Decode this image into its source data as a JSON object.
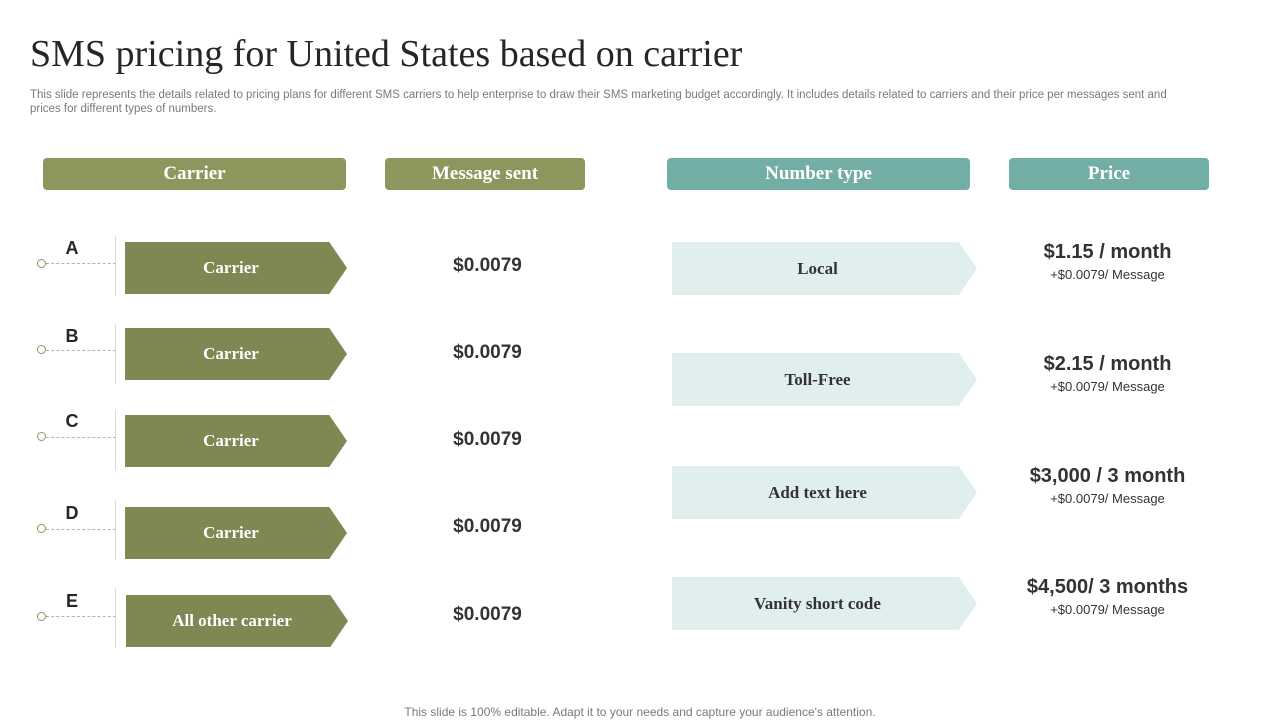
{
  "title": "SMS pricing for United States based on carrier",
  "subtitle": "This slide represents the details related to pricing plans for different SMS  carriers to help enterprise to draw their SMS  marketing budget accordingly. It includes details related to carriers and their price per messages sent and prices for different types  of numbers.",
  "headers": {
    "carrier": "Carrier",
    "message_sent": "Message sent",
    "number_type": "Number type",
    "price": "Price"
  },
  "carriers": [
    {
      "letter": "A",
      "label": "Carrier",
      "message_price": "$0.0079"
    },
    {
      "letter": "B",
      "label": "Carrier",
      "message_price": "$0.0079"
    },
    {
      "letter": "C",
      "label": "Carrier",
      "message_price": "$0.0079"
    },
    {
      "letter": "D",
      "label": "Carrier",
      "message_price": "$0.0079"
    },
    {
      "letter": "E",
      "label": "All other carrier",
      "message_price": "$0.0079"
    }
  ],
  "number_types": [
    {
      "label": "Local",
      "price": "$1.15 / month",
      "per_message": "+$0.0079/ Message"
    },
    {
      "label": "Toll-Free",
      "price": "$2.15 / month",
      "per_message": "+$0.0079/ Message"
    },
    {
      "label": "Add text here",
      "price": "$3,000 / 3 month",
      "per_message": "+$0.0079/ Message"
    },
    {
      "label": "Vanity short code",
      "price": "$4,500/ 3 months",
      "per_message": "+$0.0079/ Message"
    }
  ],
  "footer": "This slide is 100% editable. Adapt it to your needs and capture your audience's attention.",
  "colors": {
    "header_green": "#8c975d",
    "header_teal": "#72ada6",
    "carrier_arrow": "#7f8752",
    "number_arrow": "#e1eeee"
  }
}
